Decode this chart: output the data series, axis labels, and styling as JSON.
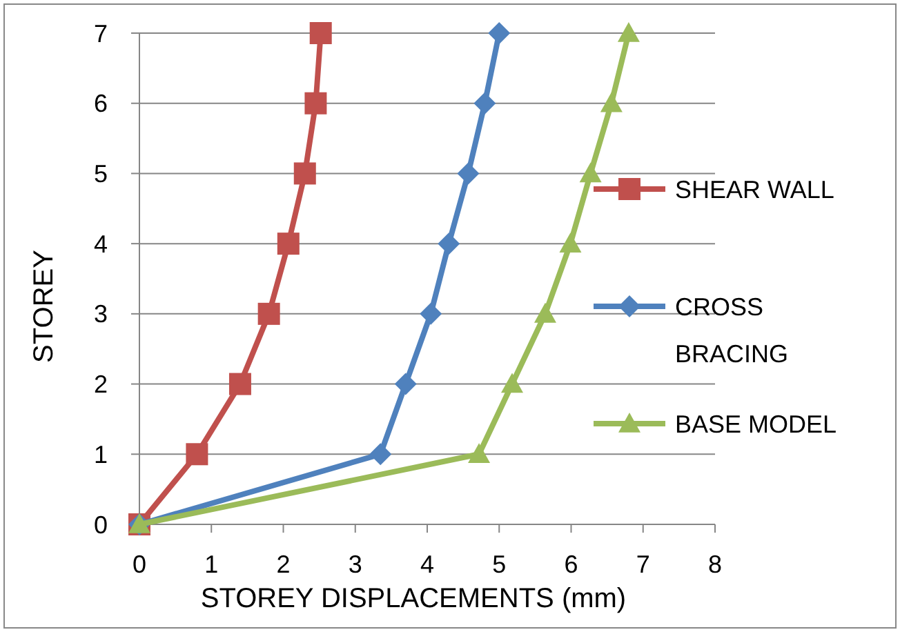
{
  "chart_data": {
    "type": "line",
    "xlabel": "STOREY DISPLACEMENTS (mm)",
    "ylabel": "STOREY",
    "xlim": [
      0,
      8
    ],
    "xticks": [
      0,
      1,
      2,
      3,
      4,
      5,
      6,
      7,
      8
    ],
    "ylim": [
      0,
      7
    ],
    "yticks": [
      0,
      1,
      2,
      3,
      4,
      5,
      6,
      7
    ],
    "grid": "y",
    "legend": "right",
    "series": [
      {
        "name": "SHEAR WALL",
        "color": "#c0504d",
        "marker": "square",
        "x": [
          0,
          0.8,
          1.4,
          1.8,
          2.07,
          2.3,
          2.45,
          2.52
        ],
        "values": [
          0,
          1,
          2,
          3,
          4,
          5,
          6,
          7
        ]
      },
      {
        "name": "CROSS BRACING",
        "color": "#4f81bd",
        "marker": "diamond",
        "x": [
          0,
          3.35,
          3.7,
          4.05,
          4.3,
          4.57,
          4.8,
          5.0
        ],
        "values": [
          0,
          1,
          2,
          3,
          4,
          5,
          6,
          7
        ]
      },
      {
        "name": "BASE MODEL",
        "color": "#9bbb59",
        "marker": "triangle",
        "x": [
          0,
          4.72,
          5.18,
          5.64,
          5.99,
          6.27,
          6.56,
          6.8
        ],
        "values": [
          0,
          1,
          2,
          3,
          4,
          5,
          6,
          7
        ]
      }
    ]
  }
}
